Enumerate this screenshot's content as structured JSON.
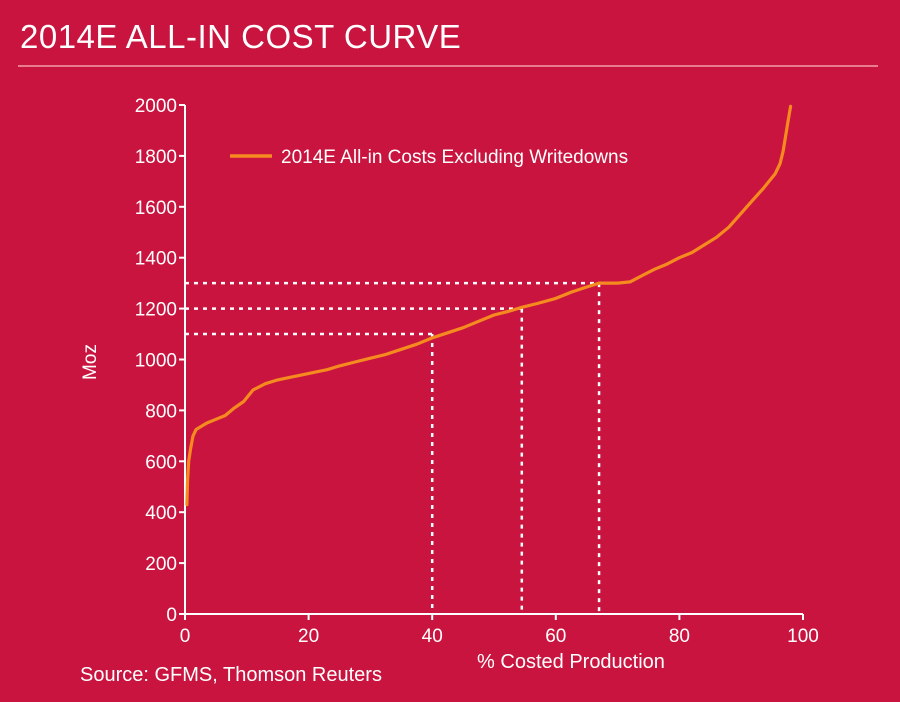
{
  "header": {
    "title": "2014E ALL-IN COST CURVE"
  },
  "footer": {
    "source": "Source: GFMS, Thomson Reuters"
  },
  "colors": {
    "background": "#c8143f",
    "line": "#f58a1f",
    "axis": "#ffffff",
    "text": "#ffffff"
  },
  "chart_data": {
    "type": "line",
    "title": "",
    "xlabel": "% Costed Production",
    "ylabel": "Moz",
    "xlim": [
      0,
      100
    ],
    "ylim": [
      0,
      2000
    ],
    "xticks": [
      0,
      20,
      40,
      60,
      80,
      100
    ],
    "yticks": [
      0,
      200,
      400,
      600,
      800,
      1000,
      1200,
      1400,
      1600,
      1800,
      2000
    ],
    "grid": false,
    "legend_position": "top-left",
    "series": [
      {
        "name": "2014E All-in Costs Excluding Writedowns",
        "x": [
          0.3,
          0.4,
          0.6,
          0.9,
          1.3,
          1.8,
          2.5,
          3.5,
          5,
          6.5,
          8,
          9.5,
          11,
          13,
          15,
          17,
          19,
          21,
          23,
          25,
          27.5,
          30,
          32.5,
          35,
          37.5,
          40,
          42.5,
          45,
          47.5,
          50,
          52.5,
          54.5,
          57,
          60,
          62.5,
          65,
          67,
          70,
          72,
          74,
          76,
          78,
          80,
          82,
          84,
          86,
          88,
          90,
          92,
          93.5,
          94.5,
          95.5,
          96.3,
          96.8,
          97.2,
          97.6,
          98
        ],
        "y": [
          430,
          520,
          600,
          650,
          700,
          725,
          735,
          750,
          765,
          780,
          810,
          835,
          880,
          905,
          920,
          930,
          940,
          950,
          960,
          975,
          990,
          1005,
          1020,
          1040,
          1060,
          1085,
          1105,
          1125,
          1150,
          1175,
          1190,
          1205,
          1220,
          1240,
          1265,
          1285,
          1300,
          1300,
          1305,
          1330,
          1355,
          1375,
          1400,
          1420,
          1450,
          1480,
          1520,
          1575,
          1630,
          1670,
          1700,
          1730,
          1770,
          1820,
          1880,
          1940,
          1995
        ]
      }
    ],
    "reference_lines": [
      {
        "x": 40,
        "y": 1100
      },
      {
        "x": 54.5,
        "y": 1200
      },
      {
        "x": 67,
        "y": 1300
      }
    ]
  }
}
